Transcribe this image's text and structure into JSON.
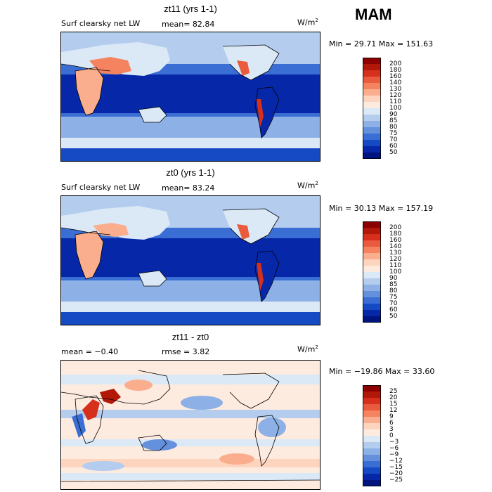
{
  "season": "MAM",
  "units": "W/m",
  "units_exp": "2",
  "panels": [
    {
      "title": "zt11 (yrs 1-1)",
      "field": "Surf clearsky net LW",
      "mean_text": "mean=  82.84",
      "minmax": "Min =  29.71 Max = 151.63",
      "ticks": [
        "200",
        "180",
        "160",
        "140",
        "130",
        "120",
        "110",
        "100",
        "90",
        "85",
        "80",
        "75",
        "70",
        "60",
        "50"
      ],
      "colors": [
        "#8b0000",
        "#b2180a",
        "#d6301c",
        "#ea5a3c",
        "#f5835f",
        "#fbae8e",
        "#fdd5bf",
        "#fdebe0",
        "#dbe9f7",
        "#b4cdef",
        "#8db0e6",
        "#6490dc",
        "#3a6ed4",
        "#1649c4",
        "#0628a8",
        "#001480"
      ]
    },
    {
      "title": "zt0 (yrs 1-1)",
      "field": "Surf clearsky net LW",
      "mean_text": "mean=  83.24",
      "minmax": "Min =  30.13 Max = 157.19",
      "ticks": [
        "200",
        "180",
        "160",
        "140",
        "130",
        "120",
        "110",
        "100",
        "90",
        "85",
        "80",
        "75",
        "70",
        "60",
        "50"
      ],
      "colors": [
        "#8b0000",
        "#b2180a",
        "#d6301c",
        "#ea5a3c",
        "#f5835f",
        "#fbae8e",
        "#fdd5bf",
        "#fdebe0",
        "#dbe9f7",
        "#b4cdef",
        "#8db0e6",
        "#6490dc",
        "#3a6ed4",
        "#1649c4",
        "#0628a8",
        "#001480"
      ]
    },
    {
      "title": "zt11 - zt0",
      "mean_text": "mean =  −0.40",
      "rmse_text": "rmse =   3.82",
      "minmax": "Min = −19.86 Max =  33.60",
      "ticks": [
        "25",
        "20",
        "15",
        "12",
        "9",
        "6",
        "3",
        "0",
        "−3",
        "−6",
        "−9",
        "−12",
        "−15",
        "−20",
        "−25"
      ],
      "colors": [
        "#8b0000",
        "#b2180a",
        "#d6301c",
        "#ea5a3c",
        "#f5835f",
        "#fbae8e",
        "#fdd5bf",
        "#fdebe0",
        "#dbe9f7",
        "#b4cdef",
        "#8db0e6",
        "#6490dc",
        "#3a6ed4",
        "#1649c4",
        "#0628a8",
        "#001480"
      ]
    }
  ]
}
